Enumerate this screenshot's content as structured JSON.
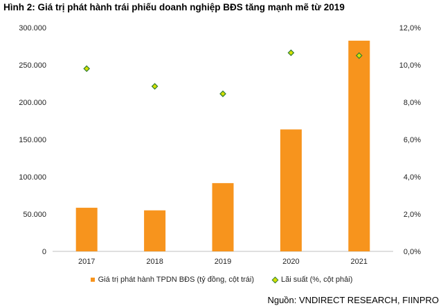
{
  "title": "Hình 2: Giá trị phát hành trái phiếu doanh nghiệp BĐS tăng mạnh mẽ từ 2019",
  "source": "Nguồn: VNDIRECT RESEARCH, FIINPRO",
  "colors": {
    "bar": "#f7941d",
    "marker_fill": "#d6e000",
    "marker_edge": "#2e7d32"
  },
  "chart_data": {
    "type": "bar",
    "categories": [
      "2017",
      "2018",
      "2019",
      "2020",
      "2021"
    ],
    "series": [
      {
        "name": "Giá trị phát hành TPDN BĐS (tỷ đồng, cột trái)",
        "type": "bar",
        "axis": "left",
        "values": [
          58500,
          55000,
          91500,
          163500,
          282500
        ]
      },
      {
        "name": "Lãi suất (%, cột phải)",
        "type": "scatter",
        "axis": "right",
        "values": [
          9.8,
          8.85,
          8.45,
          10.65,
          10.5
        ]
      }
    ],
    "y_left": {
      "ylim": [
        0,
        300000
      ],
      "ticks": [
        "0",
        "50.000",
        "100.000",
        "150.000",
        "200.000",
        "250.000",
        "300.000"
      ]
    },
    "y_right": {
      "ylim": [
        0,
        12
      ],
      "ticks": [
        "0,0%",
        "2,0%",
        "4,0%",
        "6,0%",
        "8,0%",
        "10,0%",
        "12,0%"
      ]
    },
    "grid": false,
    "legend_position": "bottom"
  }
}
